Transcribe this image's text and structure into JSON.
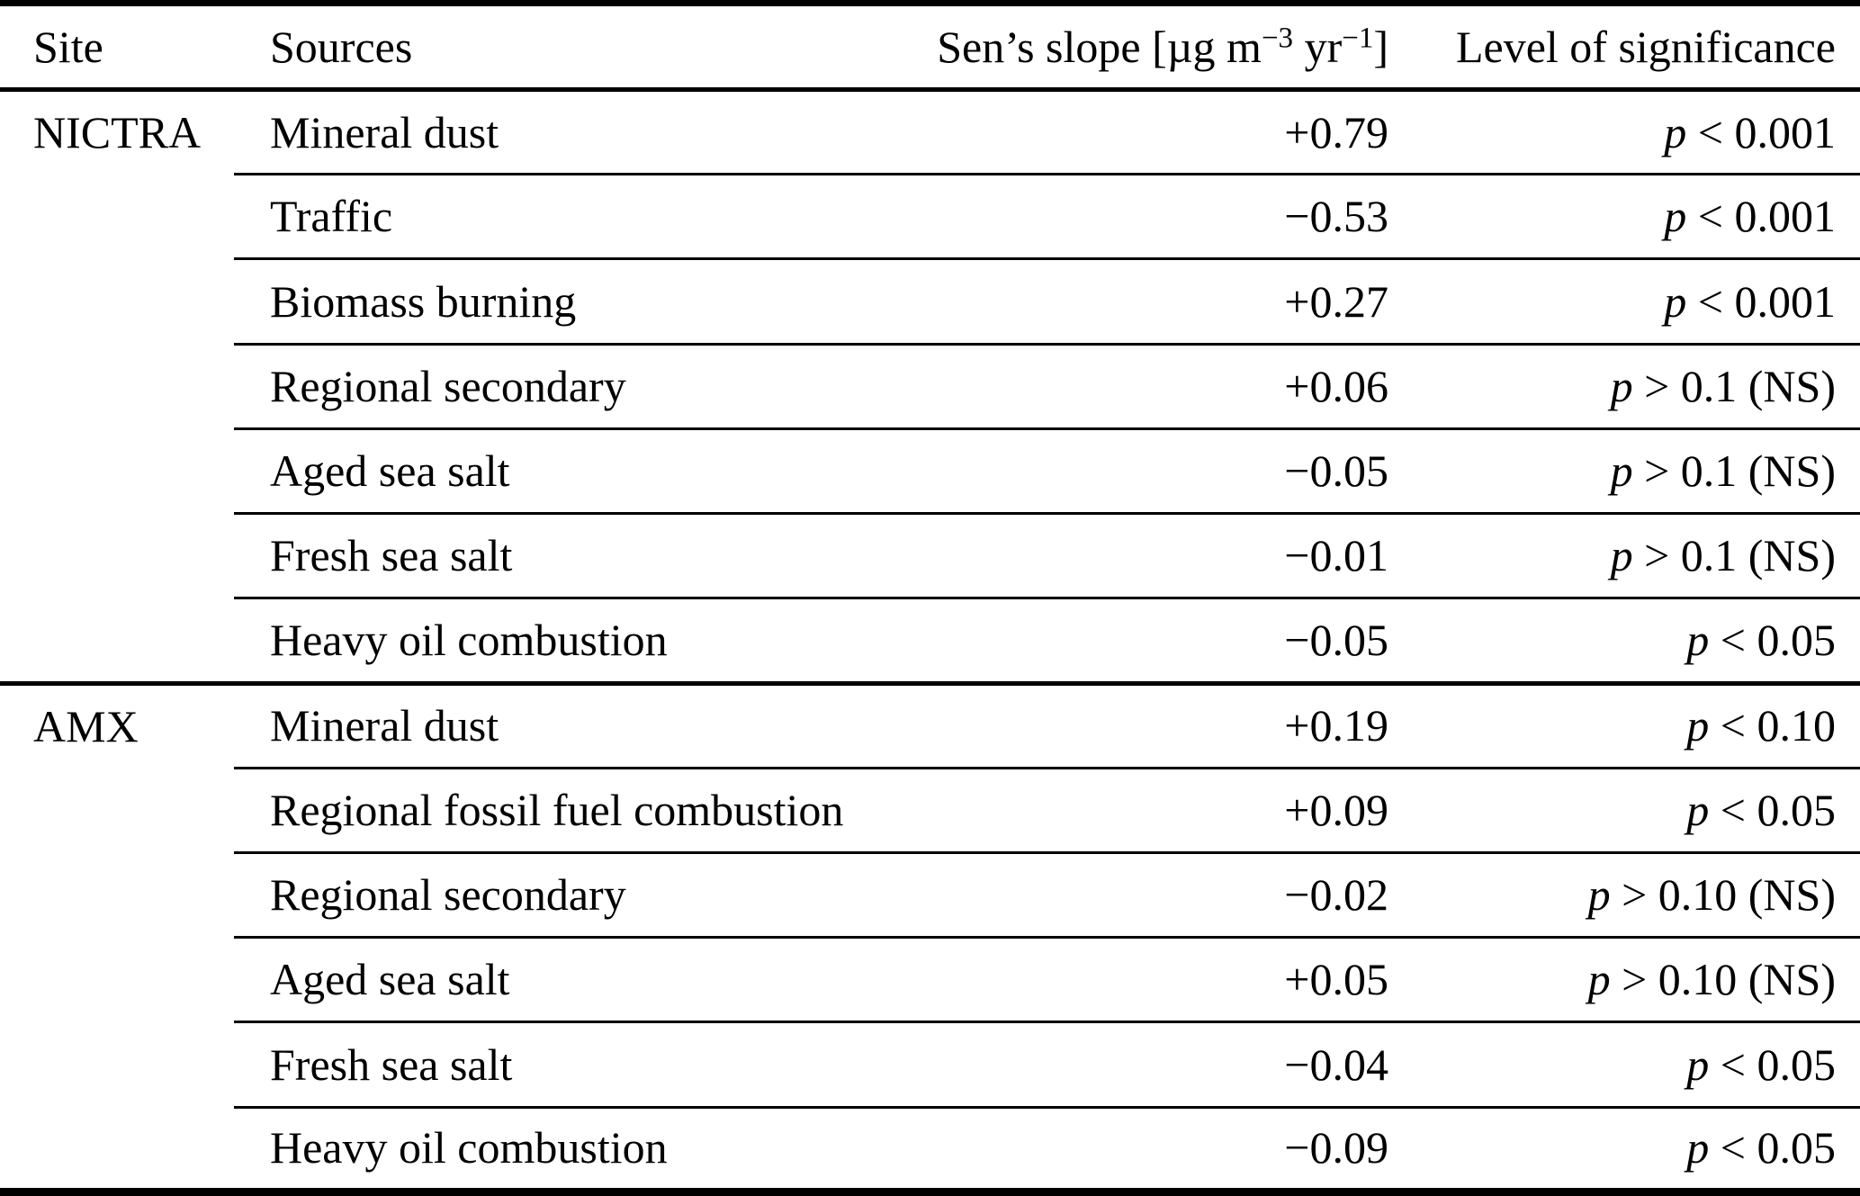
{
  "header": {
    "site": "Site",
    "sources": "Sources",
    "slope_prefix": "Sen’s slope [µg m",
    "slope_sup1": "−3",
    "slope_mid": " yr",
    "slope_sup2": "−1",
    "slope_suffix": "]",
    "significance": "Level of significance"
  },
  "rows": [
    {
      "site": "NICTRA",
      "source": "Mineral dust",
      "slope": "+0.79",
      "significance": "p < 0.001"
    },
    {
      "site": "",
      "source": "Traffic",
      "slope": "−0.53",
      "significance": "p < 0.001"
    },
    {
      "site": "",
      "source": "Biomass burning",
      "slope": "+0.27",
      "significance": "p < 0.001"
    },
    {
      "site": "",
      "source": "Regional secondary",
      "slope": "+0.06",
      "significance": "p > 0.1 (NS)"
    },
    {
      "site": "",
      "source": "Aged sea salt",
      "slope": "−0.05",
      "significance": "p > 0.1 (NS)"
    },
    {
      "site": "",
      "source": "Fresh sea salt",
      "slope": "−0.01",
      "significance": "p > 0.1 (NS)"
    },
    {
      "site": "",
      "source": "Heavy oil combustion",
      "slope": "−0.05",
      "significance": "p < 0.05",
      "group_end": true
    },
    {
      "site": "AMX",
      "source": "Mineral dust",
      "slope": "+0.19",
      "significance": "p < 0.10"
    },
    {
      "site": "",
      "source": "Regional fossil fuel combustion",
      "slope": "+0.09",
      "significance": "p < 0.05"
    },
    {
      "site": "",
      "source": "Regional secondary",
      "slope": "−0.02",
      "significance": "p > 0.10 (NS)"
    },
    {
      "site": "",
      "source": "Aged sea salt",
      "slope": "+0.05",
      "significance": "p > 0.10 (NS)"
    },
    {
      "site": "",
      "source": "Fresh sea salt",
      "slope": "−0.04",
      "significance": "p < 0.05"
    },
    {
      "site": "",
      "source": "Heavy oil combustion",
      "slope": "−0.09",
      "significance": "p < 0.05"
    }
  ],
  "chart_data": {
    "type": "table",
    "title": "",
    "columns": [
      "Site",
      "Sources",
      "Sen's slope [µg m⁻³ yr⁻¹]",
      "Level of significance"
    ],
    "rows": [
      [
        "NICTRA",
        "Mineral dust",
        "+0.79",
        "p < 0.001"
      ],
      [
        "",
        "Traffic",
        "−0.53",
        "p < 0.001"
      ],
      [
        "",
        "Biomass burning",
        "+0.27",
        "p < 0.001"
      ],
      [
        "",
        "Regional secondary",
        "+0.06",
        "p > 0.1 (NS)"
      ],
      [
        "",
        "Aged sea salt",
        "−0.05",
        "p > 0.1 (NS)"
      ],
      [
        "",
        "Fresh sea salt",
        "−0.01",
        "p > 0.1 (NS)"
      ],
      [
        "",
        "Heavy oil combustion",
        "−0.05",
        "p < 0.05"
      ],
      [
        "AMX",
        "Mineral dust",
        "+0.19",
        "p < 0.10"
      ],
      [
        "",
        "Regional fossil fuel combustion",
        "+0.09",
        "p < 0.05"
      ],
      [
        "",
        "Regional secondary",
        "−0.02",
        "p > 0.10 (NS)"
      ],
      [
        "",
        "Aged sea salt",
        "+0.05",
        "p > 0.10 (NS)"
      ],
      [
        "",
        "Fresh sea salt",
        "−0.04",
        "p < 0.05"
      ],
      [
        "",
        "Heavy oil combustion",
        "−0.09",
        "p < 0.05"
      ]
    ]
  }
}
